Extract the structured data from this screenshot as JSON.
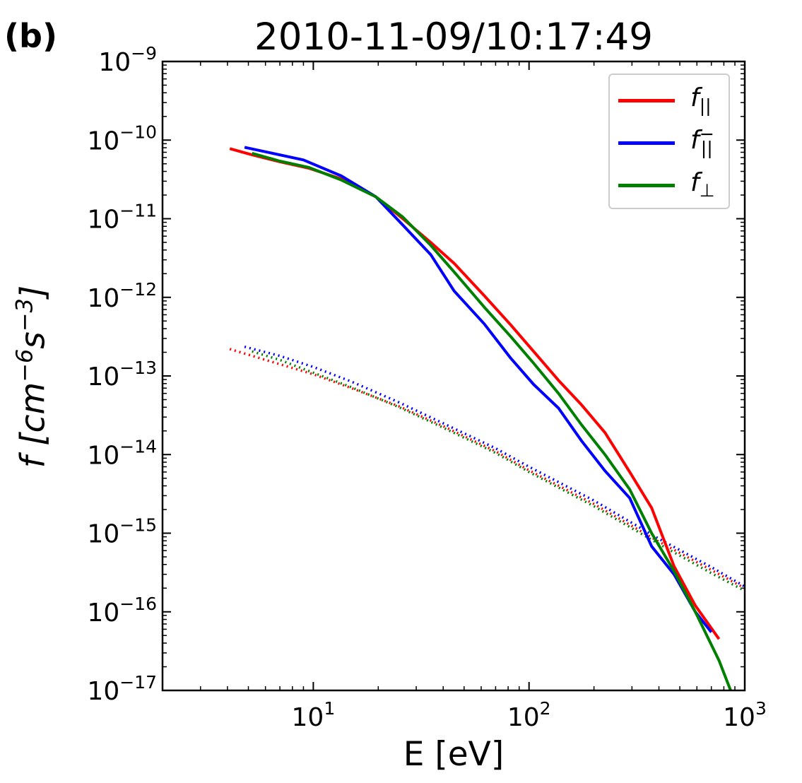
{
  "panel_label": "(b)",
  "chart_data": {
    "type": "line",
    "title": "2010-11-09/10:17:49",
    "xlabel": "E [eV]",
    "ylabel": "f [cm^-6 s^-3]",
    "xscale": "log",
    "yscale": "log",
    "xlim": [
      2,
      1000
    ],
    "ylim": [
      1e-17,
      1e-09
    ],
    "x_ticks": [
      {
        "value": 10,
        "base": "10",
        "exp": "1"
      },
      {
        "value": 100,
        "base": "10",
        "exp": "2"
      },
      {
        "value": 1000,
        "base": "10",
        "exp": "3"
      }
    ],
    "y_ticks": [
      {
        "value": 1e-09,
        "base": "10",
        "exp": "−9"
      },
      {
        "value": 1e-10,
        "base": "10",
        "exp": "−10"
      },
      {
        "value": 1e-11,
        "base": "10",
        "exp": "−11"
      },
      {
        "value": 1e-12,
        "base": "10",
        "exp": "−12"
      },
      {
        "value": 1e-13,
        "base": "10",
        "exp": "−13"
      },
      {
        "value": 1e-14,
        "base": "10",
        "exp": "−14"
      },
      {
        "value": 1e-15,
        "base": "10",
        "exp": "−15"
      },
      {
        "value": 1e-16,
        "base": "10",
        "exp": "−16"
      },
      {
        "value": 1e-17,
        "base": "10",
        "exp": "−17"
      }
    ],
    "legend_position": "top-right",
    "series": [
      {
        "name": "f_||",
        "color": "#ff0000",
        "style": "solid",
        "in_legend": true,
        "x": [
          4.1,
          5.2,
          7.0,
          9.5,
          13.5,
          19.5,
          26.0,
          35.0,
          45.0,
          62.0,
          82.0,
          105.0,
          137.0,
          175.0,
          225.0,
          293.0,
          370.0,
          470.0,
          590.0,
          760.0
        ],
        "y": [
          7.8e-11,
          6.5e-11,
          5.3e-11,
          4.4e-11,
          3.2e-11,
          1.9e-11,
          1e-11,
          5e-12,
          2.7e-12,
          1.05e-12,
          4.5e-13,
          2.05e-13,
          8.8e-14,
          4.3e-14,
          1.9e-14,
          6e-15,
          2.1e-15,
          3.8e-16,
          1.2e-16,
          4.5e-17
        ]
      },
      {
        "name": "f_||^-",
        "color": "#0000ff",
        "style": "solid",
        "in_legend": true,
        "x": [
          4.8,
          9.0,
          13.5,
          19.5,
          26.0,
          35.0,
          45.0,
          62.0,
          82.0,
          105.0,
          137.0,
          175.0,
          225.0,
          293.0,
          370.0,
          470.0,
          590.0,
          700.0
        ],
        "y": [
          8.1e-11,
          5.6e-11,
          3.5e-11,
          1.9e-11,
          8.3e-12,
          3.5e-12,
          1.2e-12,
          4.6e-13,
          1.7e-13,
          7.8e-14,
          3.9e-14,
          1.5e-14,
          6.2e-15,
          2.8e-15,
          6.8e-16,
          3e-16,
          1e-16,
          5.5e-17
        ]
      },
      {
        "name": "f_⊥",
        "color": "#008000",
        "style": "solid",
        "in_legend": true,
        "x": [
          5.2,
          7.0,
          9.5,
          13.5,
          19.5,
          26.0,
          35.0,
          45.0,
          62.0,
          82.0,
          105.0,
          137.0,
          175.0,
          225.0,
          293.0,
          370.0,
          470.0,
          590.0,
          760.0,
          860.0
        ],
        "y": [
          6.8e-11,
          5.4e-11,
          4.5e-11,
          3.1e-11,
          1.9e-11,
          1.05e-11,
          4.6e-12,
          2.1e-12,
          7.5e-13,
          3.2e-13,
          1.45e-13,
          6e-14,
          2.4e-14,
          1e-14,
          3.6e-15,
          1e-15,
          3.3e-16,
          1e-16,
          2.4e-17,
          8e-18
        ]
      },
      {
        "name": "f_|| (dotted)",
        "color": "#ff0000",
        "style": "dotted",
        "in_legend": false,
        "x": [
          4.1,
          6.0,
          10.0,
          15.0,
          25.0,
          40.0,
          70.0,
          100.0,
          200.0,
          400.0,
          700.0,
          1000.0
        ],
        "y": [
          2.2e-13,
          1.6e-13,
          1.05e-13,
          7e-14,
          4.1e-14,
          2.3e-14,
          1.1e-14,
          6.3e-15,
          2.35e-15,
          7.8e-16,
          3.4e-16,
          2e-16
        ]
      },
      {
        "name": "f_||^- (dotted)",
        "color": "#0000ff",
        "style": "dotted",
        "in_legend": false,
        "x": [
          4.8,
          7.0,
          10.0,
          15.0,
          25.0,
          40.0,
          70.0,
          100.0,
          200.0,
          400.0,
          700.0,
          1000.0
        ],
        "y": [
          2.35e-13,
          1.8e-13,
          1.3e-13,
          8.5e-14,
          4.6e-14,
          2.5e-14,
          1.2e-14,
          7e-15,
          2.6e-15,
          8.5e-16,
          3.7e-16,
          2.1e-16
        ]
      },
      {
        "name": "f_⊥ (dotted)",
        "color": "#008000",
        "style": "dotted",
        "in_legend": false,
        "x": [
          5.2,
          7.0,
          10.0,
          15.0,
          25.0,
          40.0,
          70.0,
          100.0,
          200.0,
          400.0,
          700.0,
          1000.0
        ],
        "y": [
          2.05e-13,
          1.6e-13,
          1.1e-13,
          7.2e-14,
          4e-14,
          2.2e-14,
          1.05e-14,
          6e-15,
          2.2e-15,
          7.3e-16,
          3.1e-16,
          1.85e-16
        ]
      }
    ]
  }
}
